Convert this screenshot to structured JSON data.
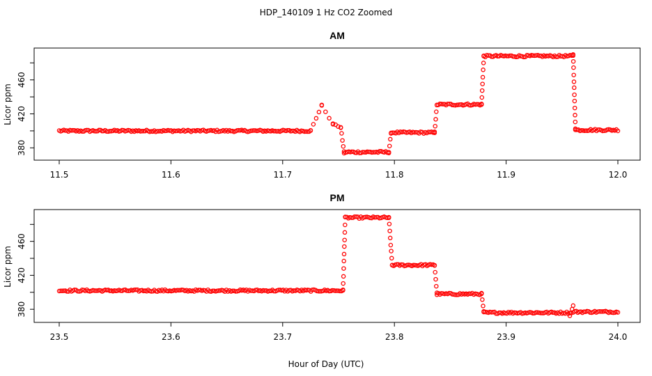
{
  "title": "HDP_140109  1 Hz CO2 Zoomed",
  "xlabel": "Hour of Day (UTC)",
  "chart_data": [
    {
      "type": "scatter",
      "title": "AM",
      "ylabel": "Licor ppm",
      "xlim": [
        11.5,
        12.0
      ],
      "ylim": [
        368,
        495
      ],
      "xticks": [
        "11.5",
        "11.6",
        "11.7",
        "11.8",
        "11.9",
        "12.0"
      ],
      "yticks": [
        "380",
        "420",
        "460"
      ],
      "color": "#ff0000",
      "segments": [
        {
          "x": [
            11.5,
            11.725
          ],
          "y": [
            400,
            400
          ]
        },
        {
          "x": [
            11.725,
            11.735
          ],
          "y": [
            400,
            430
          ]
        },
        {
          "x": [
            11.735,
            11.745
          ],
          "y": [
            430,
            408
          ]
        },
        {
          "x": [
            11.745,
            11.752
          ],
          "y": [
            408,
            404
          ]
        },
        {
          "x": [
            11.752,
            11.755
          ],
          "y": [
            404,
            374
          ]
        },
        {
          "x": [
            11.755,
            11.795
          ],
          "y": [
            375,
            375
          ]
        },
        {
          "x": [
            11.795,
            11.797
          ],
          "y": [
            375,
            397
          ]
        },
        {
          "x": [
            11.797,
            11.836
          ],
          "y": [
            398,
            398
          ]
        },
        {
          "x": [
            11.836,
            11.838
          ],
          "y": [
            398,
            430
          ]
        },
        {
          "x": [
            11.838,
            11.878
          ],
          "y": [
            431,
            431
          ]
        },
        {
          "x": [
            11.878,
            11.88
          ],
          "y": [
            431,
            488
          ]
        },
        {
          "x": [
            11.88,
            11.96
          ],
          "y": [
            488,
            488
          ]
        },
        {
          "x": [
            11.96,
            11.962
          ],
          "y": [
            490,
            403
          ]
        },
        {
          "x": [
            11.962,
            12.0
          ],
          "y": [
            401,
            401
          ]
        }
      ]
    },
    {
      "type": "scatter",
      "title": "PM",
      "ylabel": "Licor ppm",
      "xlim": [
        23.5,
        24.0
      ],
      "ylim": [
        367,
        495
      ],
      "xticks": [
        "23.5",
        "23.6",
        "23.7",
        "23.8",
        "23.9",
        "24.0"
      ],
      "yticks": [
        "380",
        "420",
        "460"
      ],
      "color": "#ff0000",
      "segments": [
        {
          "x": [
            23.5,
            23.754
          ],
          "y": [
            402,
            402
          ]
        },
        {
          "x": [
            23.754,
            23.756
          ],
          "y": [
            402,
            488
          ]
        },
        {
          "x": [
            23.756,
            23.795
          ],
          "y": [
            488,
            488
          ]
        },
        {
          "x": [
            23.795,
            23.798
          ],
          "y": [
            488,
            432
          ]
        },
        {
          "x": [
            23.798,
            23.836
          ],
          "y": [
            432,
            432
          ]
        },
        {
          "x": [
            23.836,
            23.838
          ],
          "y": [
            432,
            399
          ]
        },
        {
          "x": [
            23.838,
            23.878
          ],
          "y": [
            398,
            398
          ]
        },
        {
          "x": [
            23.878,
            23.88
          ],
          "y": [
            398,
            377
          ]
        },
        {
          "x": [
            23.88,
            23.957
          ],
          "y": [
            376,
            376
          ]
        },
        {
          "x": [
            23.957,
            23.96
          ],
          "y": [
            372,
            384
          ]
        },
        {
          "x": [
            23.96,
            24.0
          ],
          "y": [
            377,
            377
          ]
        }
      ]
    }
  ]
}
